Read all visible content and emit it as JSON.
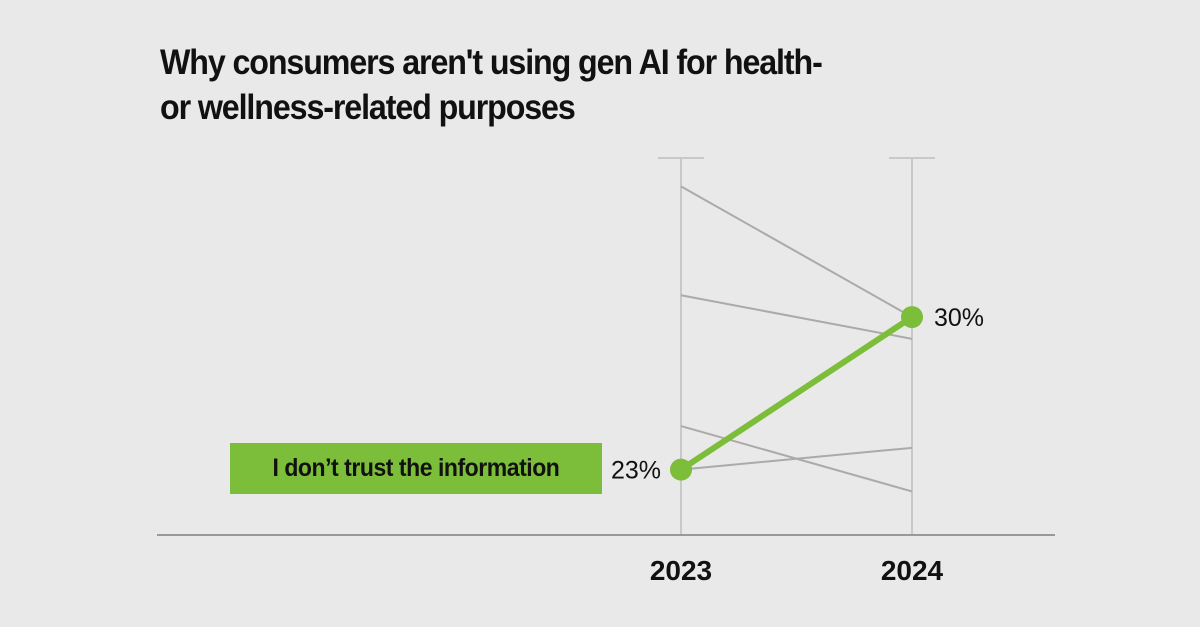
{
  "title_lines": [
    "Why consumers aren't using gen AI for health-",
    "or wellness-related purposes"
  ],
  "colors": {
    "background": "#e8e9e8",
    "highlight": "#7cbd3a",
    "other_series": "#aaaaaa",
    "axis": "#c8c8c8",
    "baseline": "#999999"
  },
  "chart_data": {
    "type": "line",
    "subtype": "slope",
    "title": "Why consumers aren't using gen AI for health- or wellness-related purposes",
    "categories": [
      "2023",
      "2024"
    ],
    "ylim": [
      20,
      37.3
    ],
    "grid": false,
    "series": [
      {
        "name": "I don’t trust the information",
        "values": [
          23,
          30
        ],
        "highlight": true,
        "labels": [
          "23%",
          "30%"
        ]
      },
      {
        "values": [
          36,
          30
        ],
        "highlight": false
      },
      {
        "values": [
          31,
          29
        ],
        "highlight": false
      },
      {
        "values": [
          25,
          22
        ],
        "highlight": false
      },
      {
        "values": [
          23,
          24
        ],
        "highlight": false
      }
    ]
  }
}
